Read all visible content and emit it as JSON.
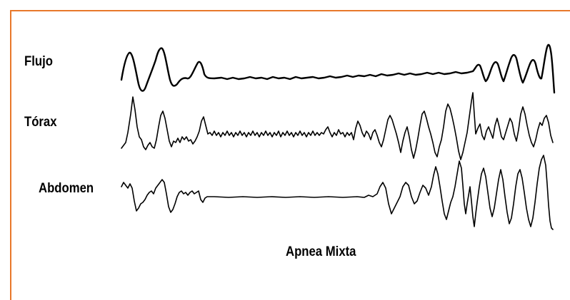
{
  "labels": {
    "flujo": "Flujo",
    "torax": "Tórax",
    "abdomen": "Abdomen"
  },
  "caption": "Apnea Mixta",
  "colors": {
    "frame": "#e8782a",
    "trace": "#000000",
    "background": "#ffffff"
  }
}
